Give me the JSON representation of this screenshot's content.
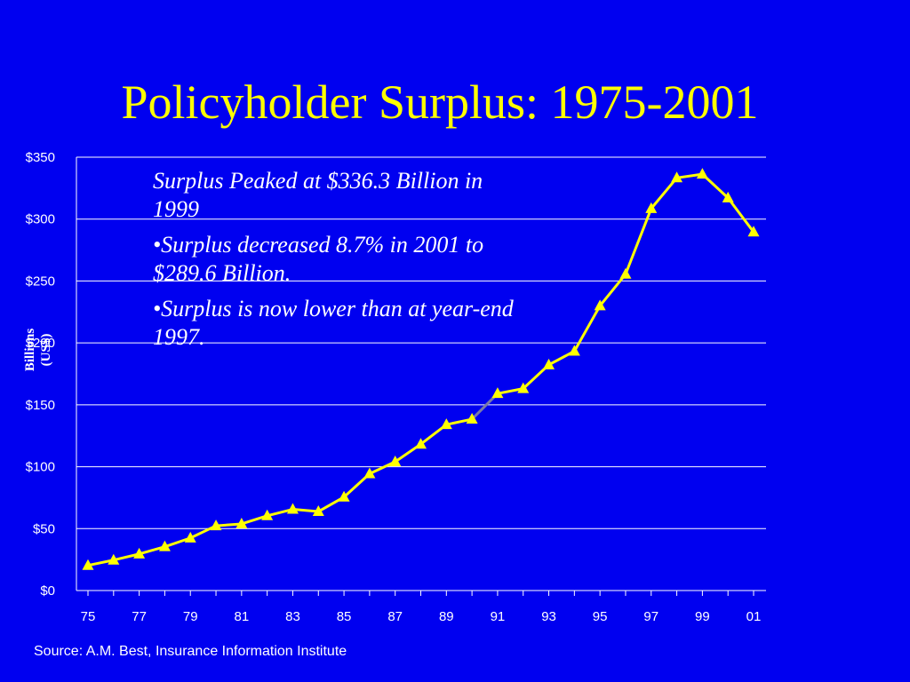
{
  "title": "Policyholder Surplus: 1975-2001",
  "annotations": [
    "Surplus Peaked at $336.3 Billion in 1999",
    "•Surplus decreased 8.7% in 2001 to $289.6 Billion.",
    "•Surplus is now lower than at year-end 1997."
  ],
  "source": "Source:  A.M. Best, Insurance Information Institute",
  "colors": {
    "background": "#0000f0",
    "title": "#ffff00",
    "series": "#ffff00",
    "highlight_segment": "#7a7aa8",
    "text": "#ffffff"
  },
  "chart_data": {
    "type": "line",
    "title": "Policyholder Surplus: 1975-2001",
    "ylabel": "Billions\n(US$)",
    "xlabel": "",
    "x": [
      1975,
      1976,
      1977,
      1978,
      1979,
      1980,
      1981,
      1982,
      1983,
      1984,
      1985,
      1986,
      1987,
      1988,
      1989,
      1990,
      1991,
      1992,
      1993,
      1994,
      1995,
      1996,
      1997,
      1998,
      1999,
      2000,
      2001
    ],
    "x_tick_labels": [
      "75",
      "77",
      "79",
      "81",
      "83",
      "85",
      "87",
      "89",
      "91",
      "93",
      "95",
      "97",
      "99",
      "01"
    ],
    "y_tick_labels": [
      "$0",
      "$50",
      "$100",
      "$150",
      "$200",
      "$250",
      "$300",
      "$350"
    ],
    "ylim": [
      0,
      350
    ],
    "grid": "horizontal",
    "marker": "triangle",
    "series": [
      {
        "values": [
          20.3,
          24.6,
          29.5,
          35.4,
          42.4,
          52.3,
          53.8,
          60.4,
          65.6,
          63.8,
          75.5,
          94.3,
          104.0,
          118.2,
          134.0,
          138.4,
          159.1,
          163.1,
          182.3,
          193.3,
          230.0,
          255.5,
          308.5,
          333.3,
          336.3,
          317.1,
          289.6
        ],
        "highlight_segment": [
          1990,
          1991
        ]
      }
    ]
  }
}
